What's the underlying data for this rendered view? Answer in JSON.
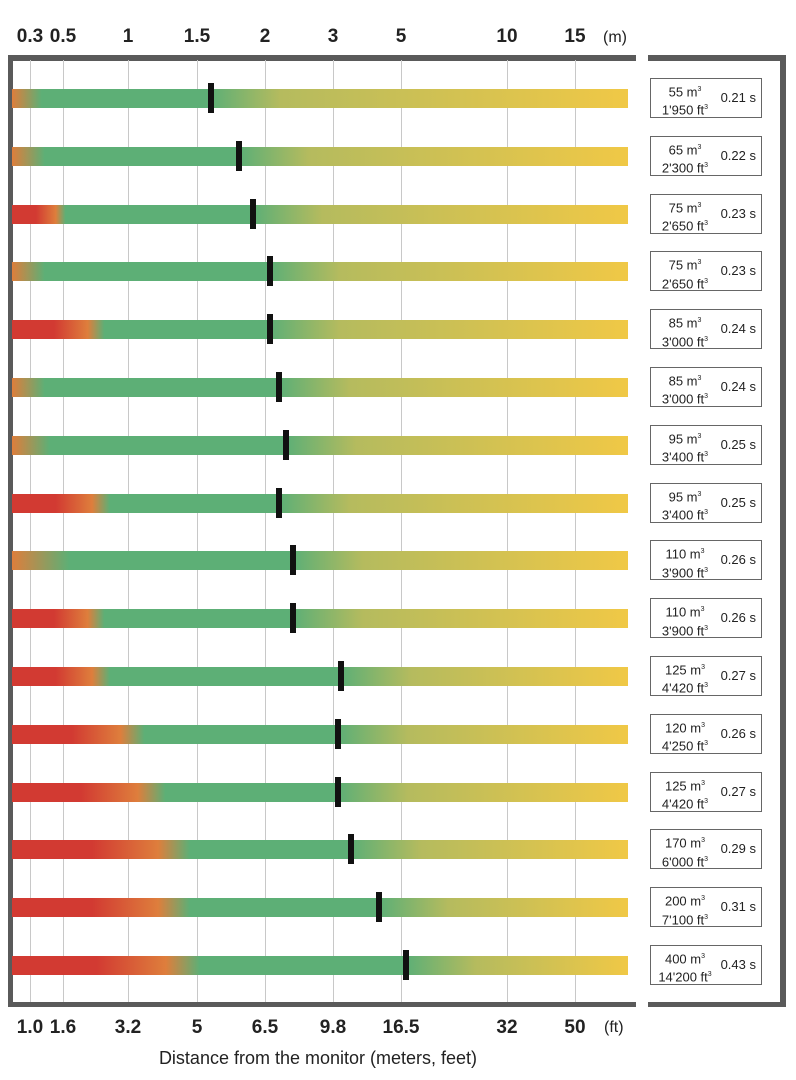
{
  "chart_data": {
    "type": "bar",
    "title": "",
    "xlabel": "Distance from the monitor (meters, feet)",
    "x_ticks_m": [
      "0.3",
      "0.5",
      "1",
      "1.5",
      "2",
      "3",
      "5",
      "10",
      "15"
    ],
    "x_unit_m": "(m)",
    "x_ticks_ft": [
      "1.0",
      "1.6",
      "3.2",
      "5",
      "6.5",
      "9.8",
      "16.5",
      "32",
      "50"
    ],
    "x_unit_ft": "(ft)",
    "xlim_m": [
      0.25,
      20
    ],
    "grid": true,
    "colors": {
      "red": "#d23a32",
      "orange": "#de7e3c",
      "green": "#5daf76",
      "yellow": "#f0c846"
    },
    "rows": [
      {
        "volume_m3": "55 m",
        "volume_ft3": "1'950 ft",
        "time": "0.21 s",
        "marker_m": 1.6,
        "green_start_m": 0.37,
        "start": "orange"
      },
      {
        "volume_m3": "65 m",
        "volume_ft3": "2'300 ft",
        "time": "0.22 s",
        "marker_m": 1.81,
        "green_start_m": 0.39,
        "start": "orange"
      },
      {
        "volume_m3": "75 m",
        "volume_ft3": "2'650 ft",
        "time": "0.23 s",
        "marker_m": 1.91,
        "green_start_m": 0.52,
        "start": "red"
      },
      {
        "volume_m3": "75 m",
        "volume_ft3": "2'650 ft",
        "time": "0.23 s",
        "marker_m": 2.07,
        "green_start_m": 0.39,
        "start": "orange"
      },
      {
        "volume_m3": "85 m",
        "volume_ft3": "3'000 ft",
        "time": "0.24 s",
        "marker_m": 2.07,
        "green_start_m": 0.82,
        "start": "red"
      },
      {
        "volume_m3": "85 m",
        "volume_ft3": "3'000 ft",
        "time": "0.24 s",
        "marker_m": 2.21,
        "green_start_m": 0.39,
        "start": "orange"
      },
      {
        "volume_m3": "95 m",
        "volume_ft3": "3'400 ft",
        "time": "0.25 s",
        "marker_m": 2.31,
        "green_start_m": 0.42,
        "start": "orange"
      },
      {
        "volume_m3": "95 m",
        "volume_ft3": "3'400 ft",
        "time": "0.25 s",
        "marker_m": 2.21,
        "green_start_m": 0.86,
        "start": "red"
      },
      {
        "volume_m3": "110 m",
        "volume_ft3": "3'900 ft",
        "time": "0.26 s",
        "marker_m": 2.41,
        "green_start_m": 0.55,
        "start": "orange"
      },
      {
        "volume_m3": "110 m",
        "volume_ft3": "3'900 ft",
        "time": "0.26 s",
        "marker_m": 2.41,
        "green_start_m": 0.82,
        "start": "red"
      },
      {
        "volume_m3": "125 m",
        "volume_ft3": "4'420 ft",
        "time": "0.27 s",
        "marker_m": 3.24,
        "green_start_m": 0.86,
        "start": "red"
      },
      {
        "volume_m3": "120 m",
        "volume_ft3": "4'250 ft",
        "time": "0.26 s",
        "marker_m": 3.15,
        "green_start_m": 1.12,
        "start": "red"
      },
      {
        "volume_m3": "125 m",
        "volume_ft3": "4'420 ft",
        "time": "0.27 s",
        "marker_m": 3.15,
        "green_start_m": 1.27,
        "start": "red"
      },
      {
        "volume_m3": "170 m",
        "volume_ft3": "6'000 ft",
        "time": "0.29 s",
        "marker_m": 3.53,
        "green_start_m": 1.45,
        "start": "red"
      },
      {
        "volume_m3": "200 m",
        "volume_ft3": "7'100 ft",
        "time": "0.31 s",
        "marker_m": 4.35,
        "green_start_m": 1.45,
        "start": "red"
      },
      {
        "volume_m3": "400 m",
        "volume_ft3": "14'200 ft",
        "time": "0.43 s",
        "marker_m": 5.24,
        "green_start_m": 1.52,
        "start": "red"
      }
    ],
    "superscript": "3"
  }
}
